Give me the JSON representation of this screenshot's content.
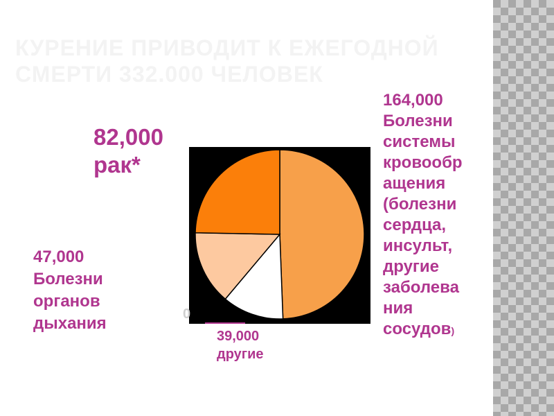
{
  "slide": {
    "title": "Курение приводит к ежегодной смерти 332.000 человек"
  },
  "colors": {
    "label": "#b0368f",
    "title": "#f3f3f3",
    "chart_background": "#000000"
  },
  "chart_data": {
    "type": "pie",
    "total": 332000,
    "slices": [
      {
        "value": 164000,
        "color": "#f7a04a"
      },
      {
        "value": 39000,
        "color": "#ffffff"
      },
      {
        "value": 47000,
        "color": "#fdc9a0"
      },
      {
        "value": 82000,
        "color": "#fb7f0a"
      }
    ],
    "start_angle_deg": 0,
    "direction": "clockwise"
  },
  "labels": {
    "cancer": {
      "value": "82,000",
      "name": "рак*"
    },
    "respiratory": {
      "value": "47,000",
      "lines": [
        "Болезни",
        "органов",
        "дыхания"
      ]
    },
    "circulatory": {
      "value": "164,000",
      "lines": [
        "Болезни",
        "системы",
        "кровообр",
        "ащения",
        "(болезни",
        "сердца,",
        "инсульт,",
        "другие",
        "заболева",
        "ния"
      ],
      "last_line": "сосудов",
      "last_suffix": ")"
    },
    "other": {
      "value": "39,000",
      "name": "другие"
    },
    "stray_zero": "0"
  }
}
